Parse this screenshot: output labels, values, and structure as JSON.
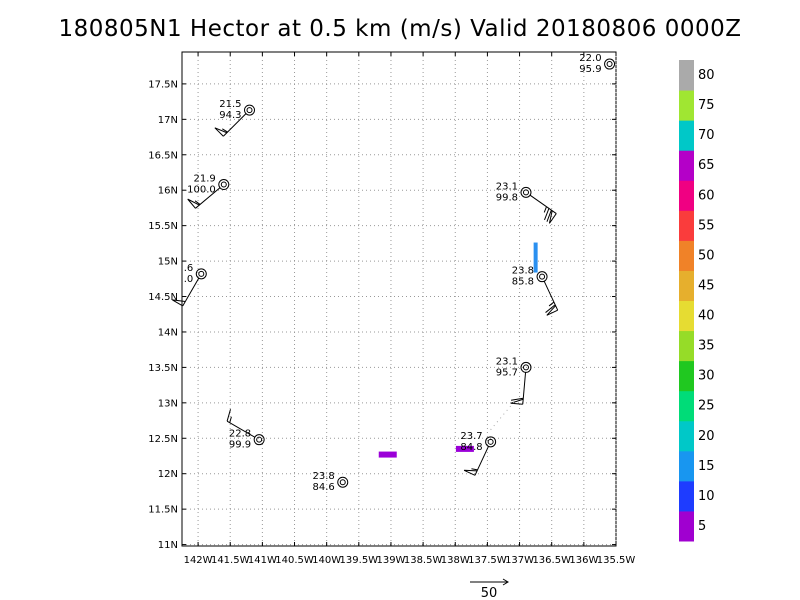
{
  "title": "180805N1 Hector at 0.5 km (m/s) Valid 20180806 0000Z",
  "map": {
    "lon_range": [
      -142.25,
      -135.5
    ],
    "lat_range": [
      10.98,
      17.95
    ],
    "lat_ticks": [
      "17.5N",
      "17N",
      "16.5N",
      "16N",
      "15.5N",
      "15N",
      "14.5N",
      "14N",
      "13.5N",
      "13N",
      "12.5N",
      "12N",
      "11.5N",
      "11N"
    ],
    "lon_ticks": [
      "142W",
      "141.5W",
      "141W",
      "140.5W",
      "140W",
      "139.5W",
      "139W",
      "138.5W",
      "138W",
      "137.5W",
      "137W",
      "136.5W",
      "136W",
      "135.5W"
    ],
    "grid": "dotted"
  },
  "stations": [
    {
      "lon": -141.2,
      "lat": 17.13,
      "t": "21.5",
      "p": "94.3",
      "wind_dir": 225,
      "speed": 55
    },
    {
      "lon": -141.6,
      "lat": 16.08,
      "t": "21.9",
      "p": "100.0",
      "wind_dir": 230,
      "speed": 55
    },
    {
      "lon": -141.95,
      "lat": 14.82,
      "t": ".6",
      "p": ".0",
      "wind_dir": 210,
      "speed": 50
    },
    {
      "lon": -136.9,
      "lat": 15.97,
      "t": "23.1",
      "p": "99.8",
      "wind_dir": 125,
      "speed": 75
    },
    {
      "lon": -136.65,
      "lat": 14.78,
      "t": "23.8",
      "p": "85.8",
      "wind_dir": 155,
      "speed": 65
    },
    {
      "lon": -136.9,
      "lat": 13.5,
      "t": "23.1",
      "p": "95.7",
      "wind_dir": 185,
      "speed": 60
    },
    {
      "lon": -137.45,
      "lat": 12.45,
      "t": "23.7",
      "p": "84.8",
      "wind_dir": 205,
      "speed": 55
    },
    {
      "lon": -141.05,
      "lat": 12.48,
      "t": "22.8",
      "p": "99.9",
      "wind_dir": 300,
      "speed": 15
    },
    {
      "lon": -139.75,
      "lat": 11.88,
      "t": "23.8",
      "p": "84.6",
      "wind_dir": null,
      "speed": 0
    },
    {
      "lon": -135.6,
      "lat": 17.78,
      "t": "22.0",
      "p": "95.9",
      "wind_dir": null,
      "speed": 0
    }
  ],
  "patches": [
    {
      "lon": -139.05,
      "lat": 12.27,
      "color": "#9b00d8"
    },
    {
      "lon": -137.85,
      "lat": 12.35,
      "color": "#9b00d8"
    },
    {
      "lon": -136.75,
      "lat": 15.05,
      "color": "#2a90f0"
    }
  ],
  "colorbar": {
    "labels": [
      "5",
      "10",
      "15",
      "20",
      "25",
      "30",
      "35",
      "40",
      "45",
      "50",
      "55",
      "60",
      "65",
      "70",
      "75",
      "80"
    ],
    "colors": [
      "#a000d0",
      "#1e3cff",
      "#1896f0",
      "#00c8c8",
      "#00dc78",
      "#20c820",
      "#96dc28",
      "#e6dc32",
      "#e6af2d",
      "#f08228",
      "#fa3c3c",
      "#f00082",
      "#b400c8",
      "#00c8c8",
      "#a0e632",
      "#aaaaaa"
    ]
  },
  "vector_legend": {
    "label": "50"
  }
}
